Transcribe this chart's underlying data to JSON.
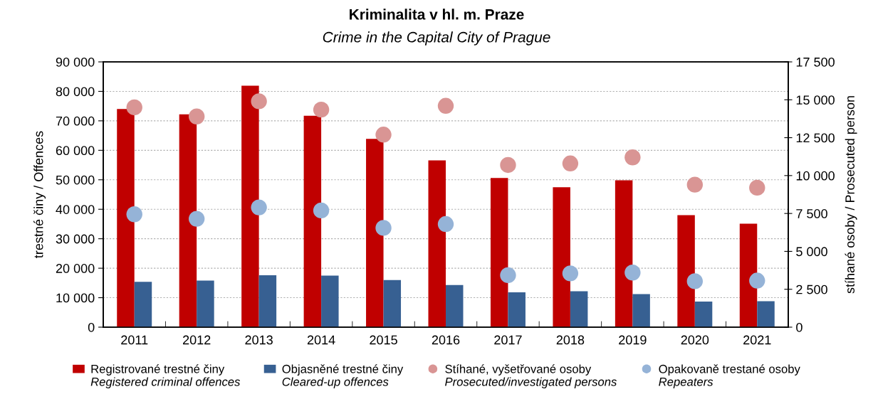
{
  "chart_data": {
    "type": "bar",
    "title": "Kriminalita v hl. m. Praze",
    "subtitle": "Crime in the Capital City of Prague",
    "ylabel": "trestné činy / Offences",
    "y2label": "stíhané osoby / Prosecuted person",
    "categories": [
      "2011",
      "2012",
      "2013",
      "2014",
      "2015",
      "2016",
      "2017",
      "2018",
      "2019",
      "2020",
      "2021"
    ],
    "series": [
      {
        "name": "Registrované trestné činy\nRegistered criminal offences",
        "color": "#c00000",
        "values": [
          74000,
          72200,
          81900,
          71700,
          63900,
          56600,
          50600,
          47500,
          49800,
          38000,
          35100
        ]
      },
      {
        "name": "Objasněné trestné činy\nCleared-up offences",
        "color": "#376092",
        "values": [
          15400,
          15800,
          17600,
          17500,
          16000,
          14300,
          11800,
          12200,
          11200,
          8700,
          8800
        ]
      },
      {
        "name": "Stíhané, vyšetřované osoby\nProsecuted/investigated persons",
        "type": "scatter",
        "axis": "y2",
        "color": "#d99594",
        "values": [
          14500,
          13900,
          14900,
          14350,
          12700,
          14600,
          10700,
          10800,
          11200,
          9400,
          9200
        ]
      },
      {
        "name": "Opakovaně trestané osoby\nRepeaters",
        "type": "scatter",
        "axis": "y2",
        "color": "#95b3d7",
        "values": [
          7450,
          7150,
          7900,
          7700,
          6550,
          6800,
          3430,
          3550,
          3600,
          3030,
          3070
        ]
      }
    ],
    "ylim": [
      0,
      90000
    ],
    "yticks": [
      0,
      {
        "value": 10000,
        "label": "10 000"
      },
      {
        "value": 20000,
        "label": "20 000"
      },
      {
        "value": 30000,
        "label": "30 000"
      },
      {
        "value": 40000,
        "label": "40 000"
      },
      {
        "value": 50000,
        "label": "50 000"
      },
      {
        "value": 60000,
        "label": "60 000"
      },
      {
        "value": 70000,
        "label": "70 000"
      },
      {
        "value": 80000,
        "label": "80 000"
      },
      {
        "value": 90000,
        "label": "90 000"
      }
    ],
    "y2lim": [
      0,
      17500
    ],
    "y2ticks": [
      0,
      {
        "value": 2500,
        "label": "2 500"
      },
      {
        "value": 5000,
        "label": "5 000"
      },
      {
        "value": 7500,
        "label": "7 500"
      },
      {
        "value": 10000,
        "label": "10 000"
      },
      {
        "value": 12500,
        "label": "12 500"
      },
      {
        "value": 15000,
        "label": "15 000"
      },
      {
        "value": 17500,
        "label": "17 500"
      }
    ],
    "grid": "y",
    "legend": "bottom",
    "marker": "circle"
  }
}
